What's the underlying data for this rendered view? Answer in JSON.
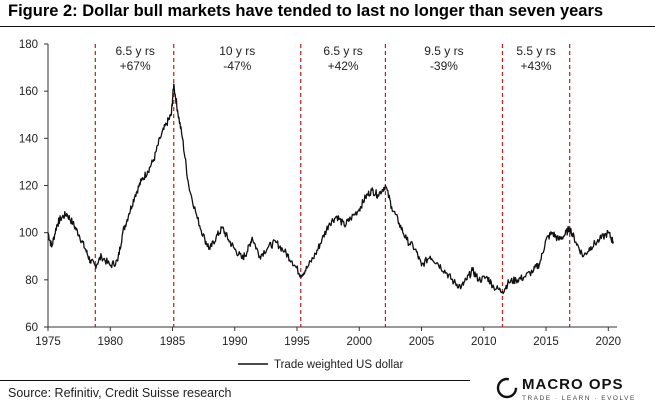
{
  "header": {
    "title": "Figure 2: Dollar bull markets have tended to last no longer than seven years"
  },
  "footer": {
    "source": "Source: Refinitiv, Credit Suisse research"
  },
  "logo": {
    "name": "MACRO OPS",
    "tagline": "TRADE · LEARN · EVOLVE"
  },
  "colors": {
    "series": "#111111",
    "divider": "#b22222",
    "axis": "#333333"
  },
  "chart_data": {
    "type": "line",
    "title": "Figure 2: Dollar bull markets have tended to last no longer than seven years",
    "xlabel": "",
    "ylabel": "",
    "xlim": [
      1975,
      2020.7
    ],
    "ylim": [
      60,
      180
    ],
    "grid": false,
    "legend": {
      "entries": [
        "Trade weighted US dollar"
      ],
      "placement": "bottom-center"
    },
    "xticks": [
      1975,
      1980,
      1985,
      1990,
      1995,
      2000,
      2005,
      2010,
      2015,
      2020
    ],
    "yticks": [
      60,
      80,
      100,
      120,
      140,
      160,
      180
    ],
    "xtick_labels": [
      "1975",
      "1980",
      "1985",
      "1990",
      "1995",
      "2000",
      "2005",
      "2010",
      "2015",
      "2020"
    ],
    "ytick_labels": [
      "60",
      "80",
      "100",
      "120",
      "140",
      "160",
      "180"
    ],
    "vertical_markers": [
      1978.8,
      1985.1,
      1995.3,
      2002.1,
      2011.5,
      2016.9
    ],
    "annotations": [
      {
        "x": 1982.0,
        "lines": [
          "6.5 y rs",
          "+67%"
        ]
      },
      {
        "x": 1990.2,
        "lines": [
          "10 y rs",
          "-47%"
        ]
      },
      {
        "x": 1998.7,
        "lines": [
          "6.5 y rs",
          "+42%"
        ]
      },
      {
        "x": 2006.8,
        "lines": [
          "9.5 y rs",
          "-39%"
        ]
      },
      {
        "x": 2014.2,
        "lines": [
          "5.5 y rs",
          "+43%"
        ]
      }
    ],
    "series": [
      {
        "name": "Trade weighted US dollar",
        "x": [
          1975.0,
          1975.3,
          1975.7,
          1976.0,
          1976.5,
          1977.0,
          1977.5,
          1978.0,
          1978.4,
          1978.8,
          1979.3,
          1980.0,
          1980.6,
          1981.0,
          1981.5,
          1982.0,
          1982.5,
          1983.0,
          1983.5,
          1984.0,
          1984.5,
          1984.9,
          1985.1,
          1985.4,
          1985.8,
          1986.3,
          1987.0,
          1987.6,
          1988.0,
          1988.5,
          1989.0,
          1989.5,
          1990.0,
          1990.6,
          1991.0,
          1991.4,
          1992.0,
          1992.7,
          1993.3,
          1994.0,
          1994.6,
          1995.3,
          1995.8,
          1996.5,
          1997.0,
          1997.6,
          1998.2,
          1998.8,
          1999.3,
          2000.0,
          2000.5,
          2001.0,
          2001.5,
          2002.1,
          2002.6,
          2003.2,
          2003.8,
          2004.5,
          2005.0,
          2005.7,
          2006.3,
          2007.0,
          2007.6,
          2008.2,
          2008.6,
          2009.1,
          2009.6,
          2010.3,
          2010.8,
          2011.5,
          2012.0,
          2012.6,
          2013.2,
          2014.0,
          2014.5,
          2015.0,
          2015.5,
          2016.0,
          2016.5,
          2016.9,
          2017.4,
          2018.0,
          2018.6,
          2019.3,
          2020.0,
          2020.4
        ],
        "values": [
          100,
          94,
          103,
          106,
          108,
          104,
          99,
          93,
          88,
          86,
          90,
          86,
          88,
          100,
          108,
          116,
          122,
          126,
          131,
          140,
          146,
          150,
          163,
          152,
          140,
          120,
          106,
          97,
          93,
          98,
          102,
          97,
          93,
          89,
          92,
          98,
          90,
          94,
          96,
          92,
          88,
          82,
          85,
          91,
          97,
          104,
          107,
          103,
          106,
          110,
          115,
          118,
          116,
          120,
          111,
          104,
          97,
          93,
          86,
          90,
          87,
          83,
          79,
          77,
          80,
          84,
          80,
          81,
          77,
          75,
          79,
          80,
          81,
          84,
          87,
          97,
          100,
          97,
          99,
          102,
          96,
          90,
          94,
          97,
          100,
          96
        ]
      }
    ]
  }
}
